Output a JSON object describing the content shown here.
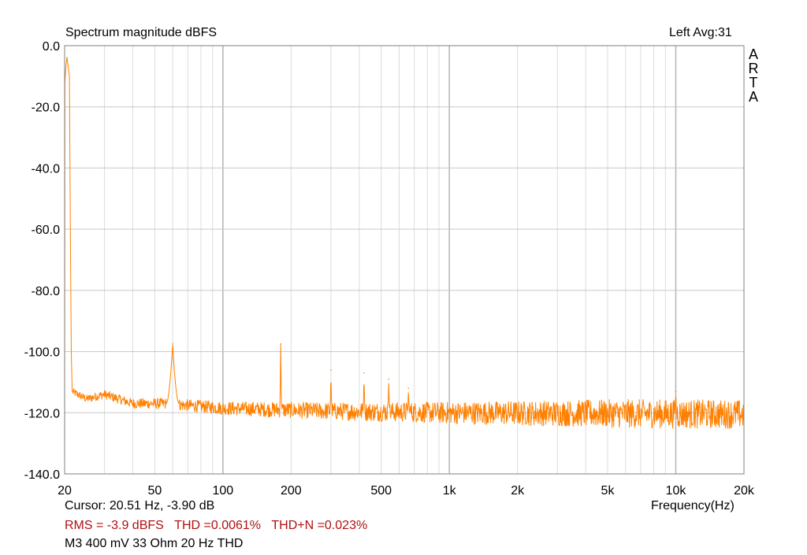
{
  "chart_data": {
    "type": "line",
    "title": "Spectrum magnitude dBFS",
    "channel_label": "Left  Avg:31",
    "watermark": "ARTA",
    "xlabel": "Frequency(Hz)",
    "xscale": "log",
    "xlim": [
      20,
      20000
    ],
    "ylim": [
      -140,
      0
    ],
    "grid": true,
    "x_ticks": [
      {
        "value": 20,
        "label": "20"
      },
      {
        "value": 50,
        "label": "50"
      },
      {
        "value": 100,
        "label": "100"
      },
      {
        "value": 200,
        "label": "200"
      },
      {
        "value": 500,
        "label": "500"
      },
      {
        "value": 1000,
        "label": "1k"
      },
      {
        "value": 2000,
        "label": "2k"
      },
      {
        "value": 5000,
        "label": "5k"
      },
      {
        "value": 10000,
        "label": "10k"
      },
      {
        "value": 20000,
        "label": "20k"
      }
    ],
    "y_ticks": [
      {
        "value": 0,
        "label": "0.0"
      },
      {
        "value": -20,
        "label": "-20.0"
      },
      {
        "value": -40,
        "label": "-40.0"
      },
      {
        "value": -60,
        "label": "-60.0"
      },
      {
        "value": -80,
        "label": "-80.0"
      },
      {
        "value": -100,
        "label": "-100.0"
      },
      {
        "value": -120,
        "label": "-120.0"
      },
      {
        "value": -140,
        "label": "-140.0"
      }
    ],
    "series": [
      {
        "color": "#ff8000",
        "peaks": [
          {
            "x": 20.5,
            "y": -3.9
          },
          {
            "x": 60,
            "y": -97.5
          },
          {
            "x": 180,
            "y": -97.5
          },
          {
            "x": 300,
            "y": -106
          },
          {
            "x": 420,
            "y": -107
          },
          {
            "x": 540,
            "y": -109
          },
          {
            "x": 660,
            "y": -112
          },
          {
            "x": 10000,
            "y": -113
          }
        ],
        "floor": [
          {
            "x": 21.5,
            "y": -113
          },
          {
            "x": 25,
            "y": -115.5
          },
          {
            "x": 30,
            "y": -114
          },
          {
            "x": 40,
            "y": -117
          },
          {
            "x": 55,
            "y": -117
          },
          {
            "x": 100,
            "y": -118.5
          },
          {
            "x": 300,
            "y": -119.5
          },
          {
            "x": 1000,
            "y": -120
          },
          {
            "x": 20000,
            "y": -120.5
          }
        ]
      }
    ]
  },
  "footer": {
    "cursor": "Cursor: 20.51 Hz, -3.90 dB",
    "rms": "RMS =   -3.9 dBFS",
    "thd": "THD =0.0061%",
    "thdn": "THD+N =0.023%",
    "note": "M3 400 mV 33 Ohm 20 Hz THD"
  }
}
